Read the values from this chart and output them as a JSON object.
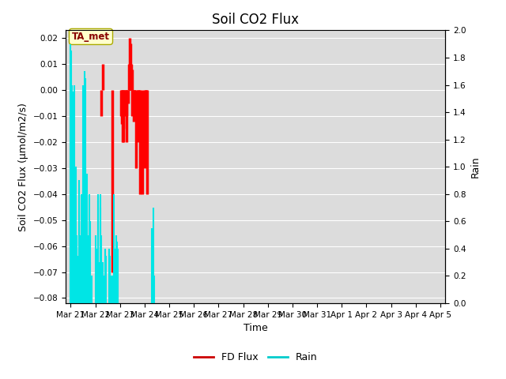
{
  "title": "Soil CO2 Flux",
  "ylabel_left": "Soil CO2 Flux (μmol/m2/s)",
  "ylabel_right": "Rain",
  "xlabel": "Time",
  "ylim_left": [
    -0.082,
    0.023
  ],
  "ylim_right": [
    0.0,
    2.0
  ],
  "annotation_text": "TA_met",
  "annotation_bbox": {
    "facecolor": "#ffffcc",
    "edgecolor": "#aaaa00",
    "boxstyle": "round,pad=0.3"
  },
  "annotation_color": "#880000",
  "background_color": "#dcdcdc",
  "fd_flux_color": "#ff0000",
  "rain_color": "#00e5e5",
  "legend_fd_color": "#cc0000",
  "legend_rain_color": "#00cccc",
  "fd_flux_data": [
    [
      22.25,
      -0.01
    ],
    [
      22.3,
      0.01
    ],
    [
      22.7,
      -0.07
    ],
    [
      23.0,
      0.0
    ],
    [
      23.05,
      -0.01
    ],
    [
      23.08,
      -0.013
    ],
    [
      23.1,
      -0.02
    ],
    [
      23.13,
      -0.015
    ],
    [
      23.15,
      -0.02
    ],
    [
      23.18,
      0.0
    ],
    [
      23.2,
      -0.005
    ],
    [
      23.22,
      -0.01
    ],
    [
      23.25,
      -0.02
    ],
    [
      23.28,
      -0.01
    ],
    [
      23.3,
      0.0
    ],
    [
      23.33,
      -0.005
    ],
    [
      23.35,
      0.01
    ],
    [
      23.38,
      0.008
    ],
    [
      23.4,
      0.02
    ],
    [
      23.42,
      0.018
    ],
    [
      23.45,
      0.01
    ],
    [
      23.48,
      0.008
    ],
    [
      23.5,
      -0.01
    ],
    [
      23.52,
      -0.008
    ],
    [
      23.55,
      -0.012
    ],
    [
      23.58,
      -0.01
    ],
    [
      23.6,
      -0.01
    ],
    [
      23.65,
      -0.03
    ],
    [
      23.7,
      -0.02
    ],
    [
      23.75,
      -0.01
    ],
    [
      23.78,
      -0.012
    ],
    [
      23.8,
      -0.04
    ],
    [
      23.9,
      -0.04
    ],
    [
      24.0,
      -0.03
    ],
    [
      24.05,
      -0.01
    ],
    [
      24.08,
      -0.012
    ],
    [
      24.1,
      -0.04
    ]
  ],
  "rain_data": [
    [
      21.0,
      1.9
    ],
    [
      21.02,
      1.85
    ],
    [
      21.05,
      1.6
    ],
    [
      21.07,
      1.55
    ],
    [
      21.1,
      0.9
    ],
    [
      21.15,
      1.6
    ],
    [
      21.18,
      0.8
    ],
    [
      21.2,
      1.0
    ],
    [
      21.25,
      0.5
    ],
    [
      21.3,
      0.35
    ],
    [
      21.35,
      0.9
    ],
    [
      21.38,
      0.5
    ],
    [
      21.42,
      0.8
    ],
    [
      21.45,
      0.6
    ],
    [
      21.5,
      1.6
    ],
    [
      21.52,
      1.55
    ],
    [
      21.55,
      1.7
    ],
    [
      21.58,
      1.65
    ],
    [
      21.6,
      1.0
    ],
    [
      21.65,
      0.95
    ],
    [
      21.7,
      0.5
    ],
    [
      21.72,
      0.4
    ],
    [
      21.75,
      0.8
    ],
    [
      21.78,
      0.6
    ],
    [
      21.8,
      0.3
    ],
    [
      21.85,
      0.2
    ],
    [
      22.0,
      0.5
    ],
    [
      22.05,
      0.4
    ],
    [
      22.1,
      0.8
    ],
    [
      22.12,
      0.75
    ],
    [
      22.15,
      0.3
    ],
    [
      22.2,
      0.8
    ],
    [
      22.22,
      0.7
    ],
    [
      22.25,
      0.5
    ],
    [
      22.3,
      0.3
    ],
    [
      22.35,
      0.2
    ],
    [
      22.4,
      0.4
    ],
    [
      22.42,
      0.35
    ],
    [
      22.55,
      0.4
    ],
    [
      22.58,
      0.35
    ],
    [
      22.65,
      0.2
    ],
    [
      22.7,
      0.2
    ],
    [
      22.75,
      0.8
    ],
    [
      22.78,
      0.4
    ],
    [
      22.8,
      0.4
    ],
    [
      22.85,
      0.5
    ],
    [
      22.88,
      0.45
    ],
    [
      22.9,
      0.4
    ],
    [
      22.92,
      0.35
    ],
    [
      24.3,
      0.55
    ],
    [
      24.32,
      0.5
    ],
    [
      24.35,
      0.7
    ],
    [
      24.37,
      0.2
    ],
    [
      24.4,
      0.2
    ]
  ],
  "xtick_labels": [
    "Mar 21",
    "Mar 22",
    "Mar 23",
    "Mar 24",
    "Mar 25",
    "Mar 26",
    "Mar 27",
    "Mar 28",
    "Mar 29",
    "Mar 30",
    "Mar 31",
    "Apr 1",
    "Apr 2",
    "Apr 3",
    "Apr 4",
    "Apr 5"
  ],
  "xtick_positions": [
    21,
    22,
    23,
    24,
    25,
    26,
    27,
    28,
    29,
    30,
    31,
    32,
    33,
    34,
    35,
    36
  ],
  "xlim": [
    20.8,
    36.2
  ],
  "yticks_left": [
    -0.08,
    -0.07,
    -0.06,
    -0.05,
    -0.04,
    -0.03,
    -0.02,
    -0.01,
    0.0,
    0.01,
    0.02
  ],
  "yticks_right": [
    0.0,
    0.2,
    0.4,
    0.6,
    0.8,
    1.0,
    1.2,
    1.4,
    1.6,
    1.8,
    2.0
  ],
  "grid_color": "#ffffff",
  "title_fontsize": 12,
  "axis_fontsize": 9,
  "tick_fontsize": 7.5
}
